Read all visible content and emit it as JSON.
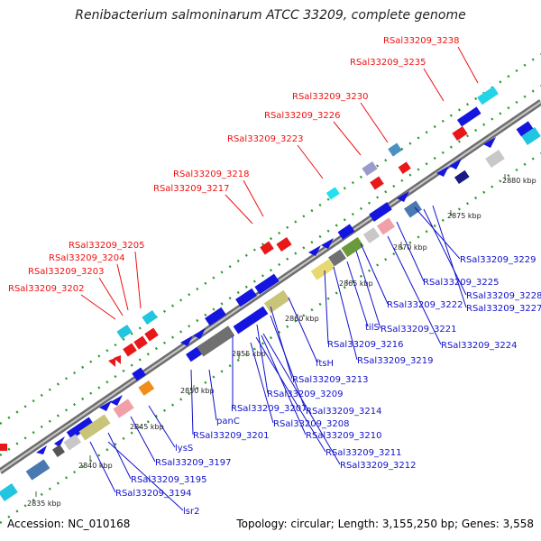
{
  "header": {
    "title": "Renibacterium salmoninarum ATCC 33209, complete genome"
  },
  "footer": {
    "accession": "Accession: NC_010168",
    "summary": "Topology: circular; Length: 3,155,250 bp; Genes: 3,558"
  },
  "colors": {
    "red_label": "#ee1111",
    "blue_label": "#1111cc",
    "backbone": "#8a8a8a"
  },
  "ticks": [
    "2835 kbp",
    "2840 kbp",
    "2845 kbp",
    "2850 kbp",
    "2855 kbp",
    "2860 kbp",
    "2865 kbp",
    "2870 kbp",
    "2875 kbp",
    "2880 kbp"
  ],
  "red_labels": [
    "RSal33209_3238",
    "RSal33209_3235",
    "RSal33209_3230",
    "RSal33209_3226",
    "RSal33209_3223",
    "RSal33209_3218",
    "RSal33209_3217",
    "RSal33209_3205",
    "RSal33209_3204",
    "RSal33209_3203",
    "RSal33209_3202"
  ],
  "blue_labels": [
    "RSal33209_3229",
    "RSal33209_3225",
    "RSal33209_3228",
    "RSal33209_3227",
    "RSal33209_3222",
    "RSal33209_3221",
    "tilS",
    "RSal33209_3224",
    "RSal33209_3216",
    "RSal33209_3219",
    "ftsH",
    "RSal33209_3213",
    "RSal33209_3209",
    "RSal33209_3214",
    "RSal33209_3207",
    "RSal33209_3208",
    "panC",
    "RSal33209_3210",
    "RSal33209_3201",
    "RSal33209_3211",
    "RSal33209_3212",
    "lysS",
    "RSal33209_3197",
    "RSal33209_3195",
    "RSal33209_3194",
    "lsr2"
  ]
}
